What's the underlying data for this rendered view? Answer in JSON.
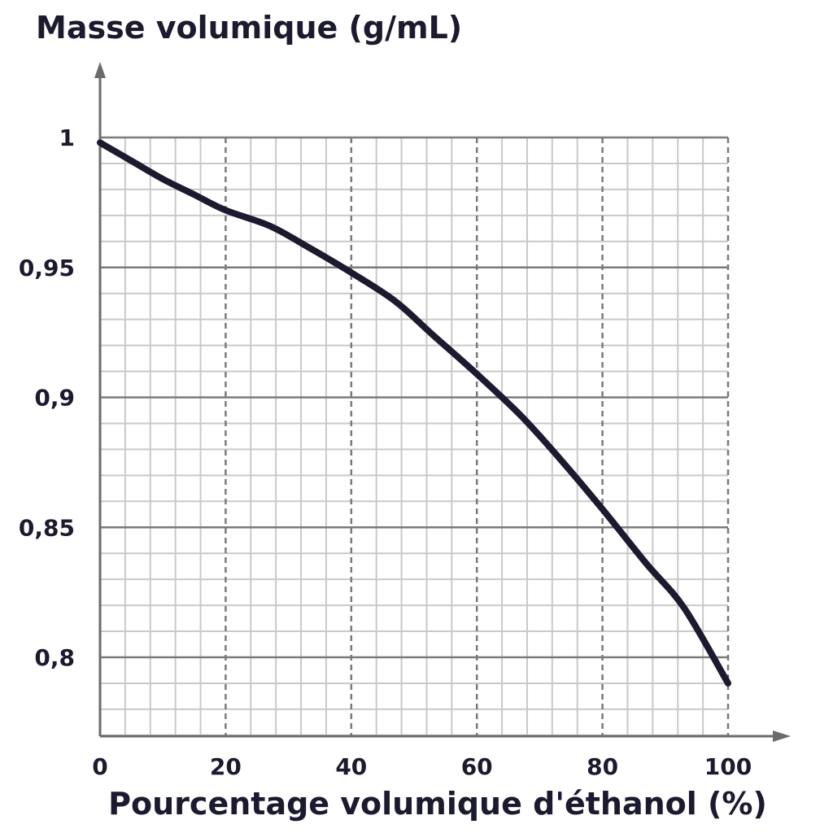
{
  "chart_data": {
    "type": "line",
    "title": "",
    "ylabel": "Masse volumique (g/mL)",
    "xlabel": "Pourcentage volumique d'éthanol (%)",
    "xlim": [
      0,
      100
    ],
    "ylim": [
      0.77,
      1.0
    ],
    "x_ticks": [
      0,
      20,
      40,
      60,
      80,
      100
    ],
    "x_tick_labels": [
      "0",
      "20",
      "40",
      "60",
      "80",
      "100"
    ],
    "y_ticks": [
      0.8,
      0.85,
      0.9,
      0.95,
      1.0
    ],
    "y_tick_labels": [
      "0,8",
      "0,85",
      "0,9",
      "0,95",
      "1"
    ],
    "grid": true,
    "line_color": "#1b1a2e",
    "series": [
      {
        "x": [
          0,
          5,
          10,
          15,
          20,
          27,
          33,
          40,
          47,
          53,
          60,
          67,
          73,
          80,
          87,
          93,
          100
        ],
        "y": [
          0.998,
          0.991,
          0.984,
          0.978,
          0.972,
          0.966,
          0.958,
          0.948,
          0.937,
          0.924,
          0.909,
          0.893,
          0.877,
          0.857,
          0.836,
          0.819,
          0.79
        ]
      }
    ]
  }
}
